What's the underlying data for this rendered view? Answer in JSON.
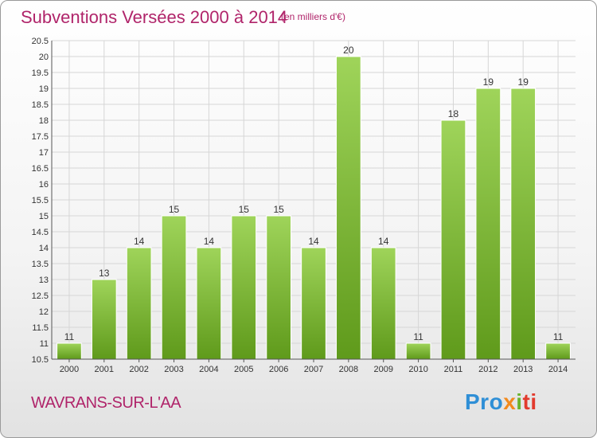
{
  "header": {
    "title": "Subventions Versées 2000 à 2014",
    "subtitle": "(en milliers d'€)"
  },
  "footer": {
    "commune": "WAVRANS-SUR-L'AA",
    "brand": [
      "Pro",
      "x",
      "i",
      "ti"
    ]
  },
  "colors": {
    "title": "#b0246a",
    "bar_top": "#9fd45a",
    "bar_bottom": "#5f9a1b",
    "grid": "#d6d6d6"
  },
  "chart_data": {
    "type": "bar",
    "categories": [
      "2000",
      "2001",
      "2002",
      "2003",
      "2004",
      "2005",
      "2006",
      "2007",
      "2008",
      "2009",
      "2010",
      "2011",
      "2012",
      "2013",
      "2014"
    ],
    "values": [
      11,
      13,
      14,
      15,
      14,
      15,
      15,
      14,
      20,
      14,
      11,
      18,
      19,
      19,
      11
    ],
    "ylim": [
      10.5,
      20.5
    ],
    "yticks": [
      "10.5",
      "11",
      "11.5",
      "12",
      "12.5",
      "13",
      "13.5",
      "14",
      "14.5",
      "15",
      "15.5",
      "16",
      "16.5",
      "17",
      "17.5",
      "18",
      "18.5",
      "19",
      "19.5",
      "20",
      "20.5"
    ],
    "grid": true
  }
}
